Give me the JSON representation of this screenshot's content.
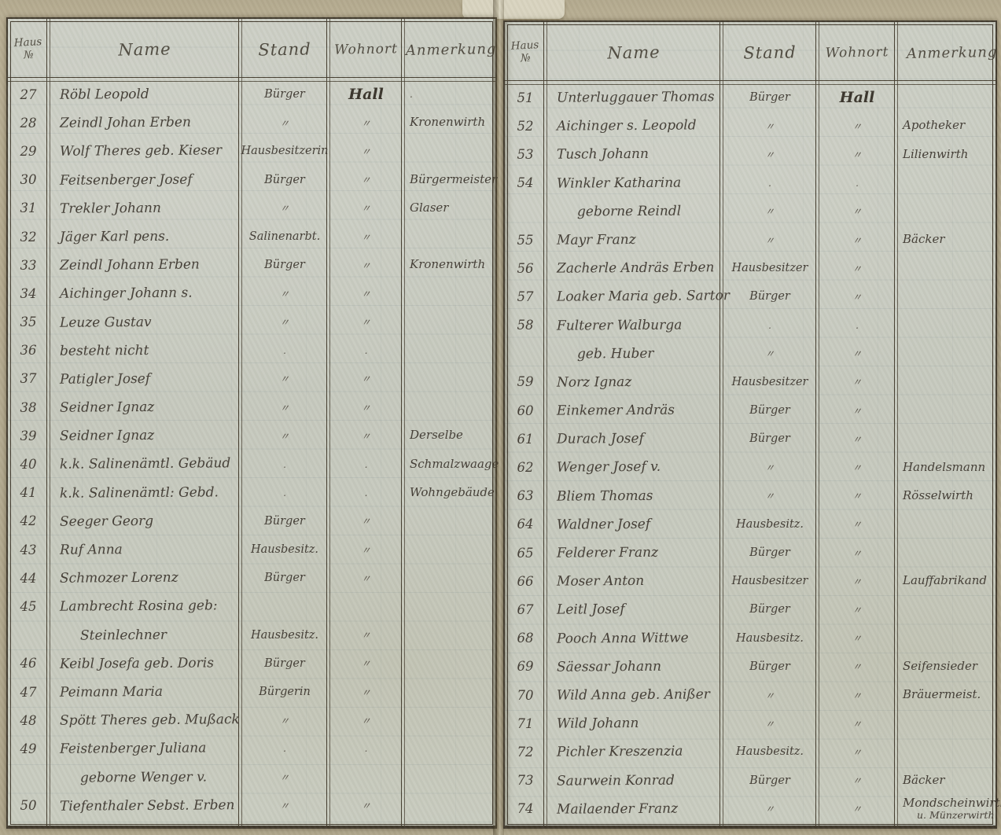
{
  "colors": {
    "paper": "#c9ccc0",
    "ink": "#38322a",
    "frame": "#453e30",
    "scan_background": "#b3a98e"
  },
  "marks": {
    "ditto": "〃",
    "empty_dot": "."
  },
  "pages": [
    {
      "side": "left",
      "header": {
        "nr_line1": "Haus",
        "nr_line2": "№",
        "name": "Name",
        "stand": "Stand",
        "wohnort": "Wohnort",
        "anmerkung": "Anmerkung"
      },
      "rows": [
        {
          "nr": "27",
          "name": "Röbl Leopold",
          "stand": "Bürger",
          "wohnort": "Hall",
          "anm": "."
        },
        {
          "nr": "28",
          "name": "Zeindl Johan Erben",
          "stand": "〃",
          "wohnort": "〃",
          "anm": "Kronenwirth"
        },
        {
          "nr": "29",
          "name": "Wolf Theres geb. Kieser",
          "stand": "Hausbesitzerin",
          "wohnort": "〃",
          "anm": ""
        },
        {
          "nr": "30",
          "name": "Feitsenberger Josef",
          "stand": "Bürger",
          "wohnort": "〃",
          "anm": "Bürgermeister"
        },
        {
          "nr": "31",
          "name": "Trekler Johann",
          "stand": "〃",
          "wohnort": "〃",
          "anm": "Glaser"
        },
        {
          "nr": "32",
          "name": "Jäger Karl pens.",
          "stand": "Salinenarbt.",
          "wohnort": "〃",
          "anm": ""
        },
        {
          "nr": "33",
          "name": "Zeindl Johann Erben",
          "stand": "Bürger",
          "wohnort": "〃",
          "anm": "Kronenwirth"
        },
        {
          "nr": "34",
          "name": "Aichinger Johann s.",
          "stand": "〃",
          "wohnort": "〃",
          "anm": ""
        },
        {
          "nr": "35",
          "name": "Leuze Gustav",
          "stand": "〃",
          "wohnort": "〃",
          "anm": ""
        },
        {
          "nr": "36",
          "name": "besteht nicht",
          "stand": ".",
          "wohnort": ".",
          "anm": ""
        },
        {
          "nr": "37",
          "name": "Patigler Josef",
          "stand": "〃",
          "wohnort": "〃",
          "anm": ""
        },
        {
          "nr": "38",
          "name": "Seidner Ignaz",
          "stand": "〃",
          "wohnort": "〃",
          "anm": ""
        },
        {
          "nr": "39",
          "name": "Seidner Ignaz",
          "stand": "〃",
          "wohnort": "〃",
          "anm": "Derselbe"
        },
        {
          "nr": "40",
          "name": "k.k. Salinenämtl. Gebäud",
          "stand": ".",
          "wohnort": ".",
          "anm": "Schmalzwaage"
        },
        {
          "nr": "41",
          "name": "k.k. Salinenämtl: Gebd.",
          "stand": ".",
          "wohnort": ".",
          "anm": "Wohngebäude"
        },
        {
          "nr": "42",
          "name": "Seeger Georg",
          "stand": "Bürger",
          "wohnort": "〃",
          "anm": ""
        },
        {
          "nr": "43",
          "name": "Ruf Anna",
          "stand": "Hausbesitz.",
          "wohnort": "〃",
          "anm": ""
        },
        {
          "nr": "44",
          "name": "Schmozer Lorenz",
          "stand": "Bürger",
          "wohnort": "〃",
          "anm": ""
        },
        {
          "nr": "45",
          "name": "Lambrecht Rosina geb:",
          "stand": "",
          "wohnort": "",
          "anm": ""
        },
        {
          "nr": "",
          "name": "Steinlechner",
          "stand": "Hausbesitz.",
          "wohnort": "〃",
          "anm": ""
        },
        {
          "nr": "46",
          "name": "Keibl Josefa geb. Doris",
          "stand": "Bürger",
          "wohnort": "〃",
          "anm": ""
        },
        {
          "nr": "47",
          "name": "Peimann Maria",
          "stand": "Bürgerin",
          "wohnort": "〃",
          "anm": ""
        },
        {
          "nr": "48",
          "name": "Spött Theres geb. Mußack",
          "stand": "〃",
          "wohnort": "〃",
          "anm": ""
        },
        {
          "nr": "49",
          "name": "Feistenberger Juliana",
          "stand": ".",
          "wohnort": ".",
          "anm": ""
        },
        {
          "nr": "",
          "name": "geborne Wenger v.",
          "stand": "〃",
          "wohnort": "",
          "anm": ""
        },
        {
          "nr": "50",
          "name": "Tiefenthaler Sebst. Erben",
          "stand": "〃",
          "wohnort": "〃",
          "anm": ""
        }
      ]
    },
    {
      "side": "right",
      "header": {
        "nr_line1": "Haus",
        "nr_line2": "№",
        "name": "Name",
        "stand": "Stand",
        "wohnort": "Wohnort",
        "anmerkung": "Anmerkung"
      },
      "rows": [
        {
          "nr": "51",
          "name": "Unterluggauer Thomas",
          "stand": "Bürger",
          "wohnort": "Hall",
          "anm": ""
        },
        {
          "nr": "52",
          "name": "Aichinger s. Leopold",
          "stand": "〃",
          "wohnort": "〃",
          "anm": "Apotheker"
        },
        {
          "nr": "53",
          "name": "Tusch Johann",
          "stand": "〃",
          "wohnort": "〃",
          "anm": "Lilienwirth"
        },
        {
          "nr": "54",
          "name": "Winkler Katharina",
          "stand": ".",
          "wohnort": ".",
          "anm": ""
        },
        {
          "nr": "",
          "name": "geborne Reindl",
          "stand": "〃",
          "wohnort": "〃",
          "anm": ""
        },
        {
          "nr": "55",
          "name": "Mayr Franz",
          "stand": "〃",
          "wohnort": "〃",
          "anm": "Bäcker"
        },
        {
          "nr": "56",
          "name": "Zacherle Andräs Erben",
          "stand": "Hausbesitzer",
          "wohnort": "〃",
          "anm": ""
        },
        {
          "nr": "57",
          "name": "Loaker Maria geb. Sartor",
          "stand": "Bürger",
          "wohnort": "〃",
          "anm": ""
        },
        {
          "nr": "58",
          "name": "Fulterer Walburga",
          "stand": ".",
          "wohnort": ".",
          "anm": ""
        },
        {
          "nr": "",
          "name": "geb. Huber",
          "stand": "〃",
          "wohnort": "〃",
          "anm": ""
        },
        {
          "nr": "59",
          "name": "Norz Ignaz",
          "stand": "Hausbesitzer",
          "wohnort": "〃",
          "anm": ""
        },
        {
          "nr": "60",
          "name": "Einkemer Andräs",
          "stand": "Bürger",
          "wohnort": "〃",
          "anm": ""
        },
        {
          "nr": "61",
          "name": "Durach Josef",
          "stand": "Bürger",
          "wohnort": "〃",
          "anm": ""
        },
        {
          "nr": "62",
          "name": "Wenger Josef v.",
          "stand": "〃",
          "wohnort": "〃",
          "anm": "Handelsmann"
        },
        {
          "nr": "63",
          "name": "Bliem Thomas",
          "stand": "〃",
          "wohnort": "〃",
          "anm": "Rösselwirth"
        },
        {
          "nr": "64",
          "name": "Waldner Josef",
          "stand": "Hausbesitz.",
          "wohnort": "〃",
          "anm": ""
        },
        {
          "nr": "65",
          "name": "Felderer Franz",
          "stand": "Bürger",
          "wohnort": "〃",
          "anm": ""
        },
        {
          "nr": "66",
          "name": "Moser Anton",
          "stand": "Hausbesitzer",
          "wohnort": "〃",
          "anm": "Lauffabrikand"
        },
        {
          "nr": "67",
          "name": "Leitl Josef",
          "stand": "Bürger",
          "wohnort": "〃",
          "anm": ""
        },
        {
          "nr": "68",
          "name": "Pooch Anna Wittwe",
          "stand": "Hausbesitz.",
          "wohnort": "〃",
          "anm": ""
        },
        {
          "nr": "69",
          "name": "Säessar Johann",
          "stand": "Bürger",
          "wohnort": "〃",
          "anm": "Seifensieder"
        },
        {
          "nr": "70",
          "name": "Wild Anna geb. Anißer",
          "stand": "〃",
          "wohnort": "〃",
          "anm": "Bräuermeist."
        },
        {
          "nr": "71",
          "name": "Wild Johann",
          "stand": "〃",
          "wohnort": "〃",
          "anm": ""
        },
        {
          "nr": "72",
          "name": "Pichler Kreszenzia",
          "stand": "Hausbesitz.",
          "wohnort": "〃",
          "anm": ""
        },
        {
          "nr": "73",
          "name": "Saurwein Konrad",
          "stand": "Bürger",
          "wohnort": "〃",
          "anm": "Bäcker"
        },
        {
          "nr": "74",
          "name": "Mailaender Franz",
          "stand": "〃",
          "wohnort": "〃",
          "anm": "Mondscheinwirth",
          "anm2": "u. Münzerwirth"
        }
      ]
    }
  ]
}
